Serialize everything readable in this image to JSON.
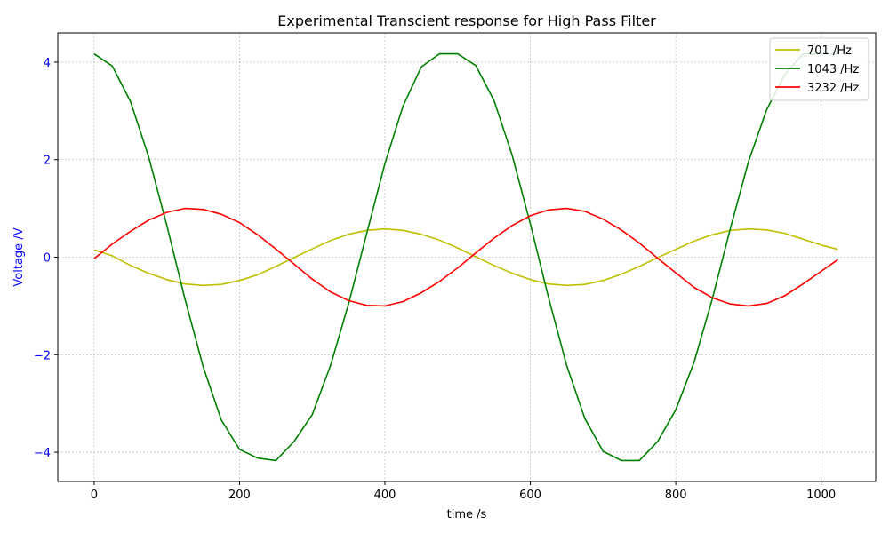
{
  "chart_data": {
    "type": "line",
    "title": "Experimental Transcient response for High Pass Filter",
    "xlabel": "time /s",
    "ylabel": "Voltage /V",
    "xlim": [
      -50,
      1075
    ],
    "ylim": [
      -4.6,
      4.6
    ],
    "xticks": [
      0,
      200,
      400,
      600,
      800,
      1000
    ],
    "xtick_labels": [
      "0",
      "200",
      "400",
      "600",
      "800",
      "1000"
    ],
    "yticks": [
      -4,
      -2,
      0,
      2,
      4
    ],
    "ytick_labels": [
      "−4",
      "−2",
      "0",
      "2",
      "4"
    ],
    "grid": true,
    "legend_position": "top-right",
    "colors": {
      "ylabel": "#0000ff",
      "ytick": "#0000ff",
      "text": "#000000",
      "grid": "#b0b0b0"
    },
    "x": [
      0,
      25,
      50,
      75,
      100,
      125,
      150,
      175,
      200,
      225,
      250,
      275,
      300,
      325,
      350,
      375,
      400,
      425,
      450,
      475,
      500,
      525,
      550,
      575,
      600,
      625,
      650,
      675,
      700,
      725,
      750,
      775,
      800,
      825,
      850,
      875,
      900,
      925,
      950,
      975,
      1000,
      1023
    ],
    "series": [
      {
        "name": "701 /Hz",
        "color": "#bfbf00",
        "values": [
          0.15,
          0.03,
          -0.17,
          -0.33,
          -0.46,
          -0.55,
          -0.58,
          -0.56,
          -0.48,
          -0.36,
          -0.19,
          -0.01,
          0.17,
          0.34,
          0.47,
          0.55,
          0.58,
          0.55,
          0.47,
          0.35,
          0.19,
          0.01,
          -0.17,
          -0.33,
          -0.46,
          -0.55,
          -0.58,
          -0.56,
          -0.48,
          -0.35,
          -0.19,
          -0.01,
          0.16,
          0.33,
          0.46,
          0.55,
          0.58,
          0.56,
          0.49,
          0.37,
          0.25,
          0.16
        ]
      },
      {
        "name": "1043 /Hz",
        "color": "#008000",
        "values": [
          4.17,
          3.92,
          3.19,
          2.06,
          0.65,
          -0.86,
          -2.25,
          -3.34,
          -3.94,
          -4.12,
          -4.17,
          -3.78,
          -3.23,
          -2.23,
          -0.96,
          0.49,
          1.92,
          3.1,
          3.9,
          4.17,
          4.17,
          3.93,
          3.21,
          2.09,
          0.68,
          -0.83,
          -2.22,
          -3.31,
          -3.98,
          -4.17,
          -4.17,
          -3.78,
          -3.13,
          -2.16,
          -0.87,
          0.58,
          1.96,
          3.02,
          3.75,
          4.17,
          4.17,
          4.17
        ]
      },
      {
        "name": "3232 /Hz",
        "color": "#ff0000",
        "values": [
          -0.03,
          0.27,
          0.53,
          0.76,
          0.92,
          1.0,
          0.98,
          0.88,
          0.71,
          0.46,
          0.17,
          -0.14,
          -0.45,
          -0.71,
          -0.89,
          -0.99,
          -1.0,
          -0.91,
          -0.73,
          -0.5,
          -0.22,
          0.09,
          0.39,
          0.65,
          0.85,
          0.97,
          1.0,
          0.94,
          0.78,
          0.56,
          0.29,
          -0.02,
          -0.32,
          -0.62,
          -0.83,
          -0.96,
          -1.0,
          -0.95,
          -0.79,
          -0.55,
          -0.29,
          -0.05
        ]
      }
    ]
  }
}
